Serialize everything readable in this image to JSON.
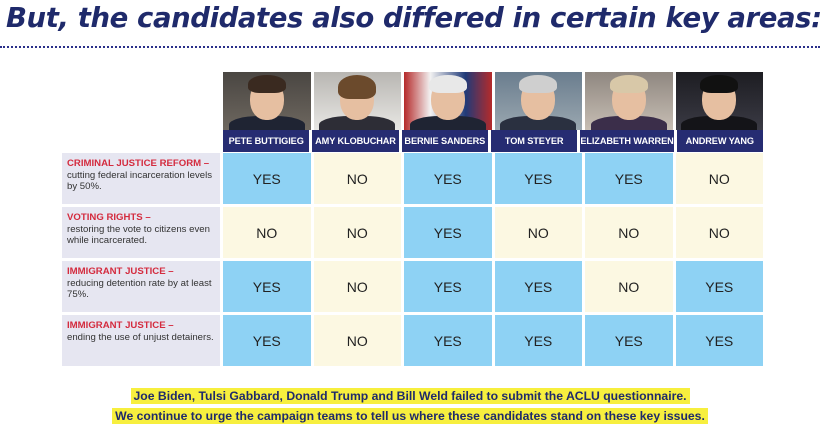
{
  "headline": "But, the candidates also differed in certain key areas:",
  "candidates": [
    {
      "name": "PETE BUTTIGIEG",
      "photo": "portrait-buttigieg"
    },
    {
      "name": "AMY KLOBUCHAR",
      "photo": "portrait-klobuchar"
    },
    {
      "name": "BERNIE SANDERS",
      "photo": "portrait-sanders"
    },
    {
      "name": "TOM STEYER",
      "photo": "portrait-steyer"
    },
    {
      "name": "ELIZABETH WARREN",
      "photo": "portrait-warren"
    },
    {
      "name": "ANDREW YANG",
      "photo": "portrait-yang"
    }
  ],
  "issues": [
    {
      "title": "CRIMINAL JUSTICE REFORM –",
      "description": "cutting federal incarceration levels by 50%.",
      "answers": [
        "YES",
        "NO",
        "YES",
        "YES",
        "YES",
        "NO"
      ]
    },
    {
      "title": "VOTING RIGHTS –",
      "description": "restoring the vote to citizens even while incarcerated.",
      "answers": [
        "NO",
        "NO",
        "YES",
        "NO",
        "NO",
        "NO"
      ]
    },
    {
      "title": "IMMIGRANT JUSTICE –",
      "description": "reducing detention rate by at least 75%.",
      "answers": [
        "YES",
        "NO",
        "YES",
        "YES",
        "NO",
        "YES"
      ]
    },
    {
      "title": "IMMIGRANT JUSTICE –",
      "description": "ending the use of unjust detainers.",
      "answers": [
        "YES",
        "NO",
        "YES",
        "YES",
        "YES",
        "YES"
      ]
    }
  ],
  "footer": {
    "line1": "Joe Biden, Tulsi Gabbard, Donald Trump and Bill Weld failed to submit the ACLU questionnaire.",
    "line2": "We continue to urge the campaign teams to tell us where these candidates stand on these key issues."
  },
  "colors": {
    "headline": "#1f2a6b",
    "name_header": "#262c72",
    "issue_title": "#d42b3e",
    "yes_cell": "#8ed2f4",
    "no_cell": "#fcf8e2",
    "label_bg": "#e6e6f1",
    "highlight": "#f7ef3e"
  }
}
